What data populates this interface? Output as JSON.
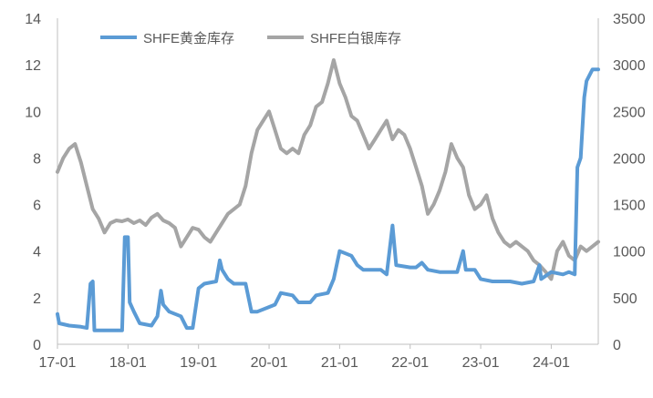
{
  "chart_data": {
    "type": "line",
    "title": "",
    "x_axis": {
      "tick_labels": [
        "17-01",
        "18-01",
        "19-01",
        "20-01",
        "21-01",
        "22-01",
        "23-01",
        "24-01"
      ],
      "range": [
        "2017-01",
        "2024-09"
      ]
    },
    "y_left": {
      "range": [
        0,
        14
      ],
      "ticks": [
        0,
        2,
        4,
        6,
        8,
        10,
        12,
        14
      ]
    },
    "y_right": {
      "range": [
        0,
        3500
      ],
      "ticks": [
        0,
        500,
        1000,
        1500,
        2000,
        2500,
        3000,
        3500
      ]
    },
    "grid": false,
    "legend": {
      "placement": "top-left"
    },
    "series": [
      {
        "name": "SHFE黄金库存",
        "axis": "left",
        "color": "#5B9BD5",
        "points": [
          [
            "2017-01",
            1.3
          ],
          [
            "2017-01-10",
            0.9
          ],
          [
            "2017-03",
            0.8
          ],
          [
            "2017-05",
            0.75
          ],
          [
            "2017-06",
            0.7
          ],
          [
            "2017-06-20",
            2.6
          ],
          [
            "2017-07",
            2.7
          ],
          [
            "2017-07-10",
            0.6
          ],
          [
            "2017-09",
            0.6
          ],
          [
            "2017-11",
            0.6
          ],
          [
            "2017-12",
            0.6
          ],
          [
            "2017-12-15",
            4.6
          ],
          [
            "2018-01",
            4.6
          ],
          [
            "2018-01-10",
            1.8
          ],
          [
            "2018-02",
            1.4
          ],
          [
            "2018-03",
            0.9
          ],
          [
            "2018-05",
            0.8
          ],
          [
            "2018-06",
            1.2
          ],
          [
            "2018-06-20",
            2.3
          ],
          [
            "2018-07",
            1.7
          ],
          [
            "2018-08",
            1.4
          ],
          [
            "2018-10",
            1.2
          ],
          [
            "2018-11",
            0.7
          ],
          [
            "2018-12",
            0.7
          ],
          [
            "2019-01",
            2.4
          ],
          [
            "2019-02",
            2.6
          ],
          [
            "2019-04",
            2.7
          ],
          [
            "2019-04-20",
            3.6
          ],
          [
            "2019-05",
            3.2
          ],
          [
            "2019-06",
            2.8
          ],
          [
            "2019-07",
            2.6
          ],
          [
            "2019-09",
            2.6
          ],
          [
            "2019-10",
            1.4
          ],
          [
            "2019-11",
            1.4
          ],
          [
            "2020-01",
            1.6
          ],
          [
            "2020-02",
            1.7
          ],
          [
            "2020-03",
            2.2
          ],
          [
            "2020-05",
            2.1
          ],
          [
            "2020-06",
            1.8
          ],
          [
            "2020-08",
            1.8
          ],
          [
            "2020-09",
            2.1
          ],
          [
            "2020-11",
            2.2
          ],
          [
            "2020-12",
            2.8
          ],
          [
            "2021-01",
            4.0
          ],
          [
            "2021-03",
            3.8
          ],
          [
            "2021-04",
            3.4
          ],
          [
            "2021-05",
            3.2
          ],
          [
            "2021-08",
            3.2
          ],
          [
            "2021-09",
            3.0
          ],
          [
            "2021-10",
            5.1
          ],
          [
            "2021-10-20",
            3.4
          ],
          [
            "2022-01",
            3.3
          ],
          [
            "2022-02",
            3.3
          ],
          [
            "2022-03",
            3.5
          ],
          [
            "2022-04",
            3.2
          ],
          [
            "2022-06",
            3.1
          ],
          [
            "2022-09",
            3.1
          ],
          [
            "2022-10",
            4.0
          ],
          [
            "2022-10-15",
            3.2
          ],
          [
            "2022-12",
            3.2
          ],
          [
            "2023-01",
            2.8
          ],
          [
            "2023-03",
            2.7
          ],
          [
            "2023-06",
            2.7
          ],
          [
            "2023-08",
            2.6
          ],
          [
            "2023-10",
            2.7
          ],
          [
            "2023-11",
            3.4
          ],
          [
            "2023-11-10",
            2.8
          ],
          [
            "2024-01",
            3.1
          ],
          [
            "2024-03",
            3.0
          ],
          [
            "2024-04",
            3.1
          ],
          [
            "2024-05",
            3.0
          ],
          [
            "2024-05-15",
            7.6
          ],
          [
            "2024-06",
            8.0
          ],
          [
            "2024-06-20",
            10.6
          ],
          [
            "2024-07",
            11.3
          ],
          [
            "2024-08",
            11.8
          ],
          [
            "2024-09",
            11.8
          ]
        ]
      },
      {
        "name": "SHFE白银库存",
        "axis": "right",
        "color": "#A5A5A5",
        "points": [
          [
            "2017-01",
            1850
          ],
          [
            "2017-02",
            2000
          ],
          [
            "2017-03",
            2100
          ],
          [
            "2017-04",
            2150
          ],
          [
            "2017-05",
            1950
          ],
          [
            "2017-06",
            1700
          ],
          [
            "2017-07",
            1450
          ],
          [
            "2017-08",
            1350
          ],
          [
            "2017-09",
            1200
          ],
          [
            "2017-10",
            1300
          ],
          [
            "2017-11",
            1330
          ],
          [
            "2017-12",
            1320
          ],
          [
            "2018-01",
            1340
          ],
          [
            "2018-02",
            1300
          ],
          [
            "2018-03",
            1330
          ],
          [
            "2018-04",
            1280
          ],
          [
            "2018-05",
            1360
          ],
          [
            "2018-06",
            1400
          ],
          [
            "2018-07",
            1330
          ],
          [
            "2018-08",
            1300
          ],
          [
            "2018-09",
            1250
          ],
          [
            "2018-10",
            1050
          ],
          [
            "2018-11",
            1150
          ],
          [
            "2018-12",
            1250
          ],
          [
            "2019-01",
            1230
          ],
          [
            "2019-02",
            1150
          ],
          [
            "2019-03",
            1100
          ],
          [
            "2019-04",
            1200
          ],
          [
            "2019-05",
            1300
          ],
          [
            "2019-06",
            1400
          ],
          [
            "2019-07",
            1450
          ],
          [
            "2019-08",
            1500
          ],
          [
            "2019-09",
            1700
          ],
          [
            "2019-10",
            2050
          ],
          [
            "2019-11",
            2300
          ],
          [
            "2019-12",
            2400
          ],
          [
            "2020-01",
            2500
          ],
          [
            "2020-02",
            2300
          ],
          [
            "2020-03",
            2100
          ],
          [
            "2020-04",
            2050
          ],
          [
            "2020-05",
            2100
          ],
          [
            "2020-06",
            2050
          ],
          [
            "2020-07",
            2250
          ],
          [
            "2020-08",
            2350
          ],
          [
            "2020-09",
            2550
          ],
          [
            "2020-10",
            2600
          ],
          [
            "2020-11",
            2800
          ],
          [
            "2020-12",
            3050
          ],
          [
            "2021-01",
            2800
          ],
          [
            "2021-02",
            2650
          ],
          [
            "2021-03",
            2450
          ],
          [
            "2021-04",
            2400
          ],
          [
            "2021-05",
            2250
          ],
          [
            "2021-06",
            2100
          ],
          [
            "2021-07",
            2200
          ],
          [
            "2021-08",
            2300
          ],
          [
            "2021-09",
            2400
          ],
          [
            "2021-10",
            2200
          ],
          [
            "2021-11",
            2300
          ],
          [
            "2021-12",
            2250
          ],
          [
            "2022-01",
            2100
          ],
          [
            "2022-02",
            1900
          ],
          [
            "2022-03",
            1700
          ],
          [
            "2022-04",
            1400
          ],
          [
            "2022-05",
            1500
          ],
          [
            "2022-06",
            1650
          ],
          [
            "2022-07",
            1850
          ],
          [
            "2022-08",
            2150
          ],
          [
            "2022-09",
            2000
          ],
          [
            "2022-10",
            1900
          ],
          [
            "2022-11",
            1600
          ],
          [
            "2022-12",
            1450
          ],
          [
            "2023-01",
            1500
          ],
          [
            "2023-02",
            1600
          ],
          [
            "2023-03",
            1350
          ],
          [
            "2023-04",
            1200
          ],
          [
            "2023-05",
            1100
          ],
          [
            "2023-06",
            1050
          ],
          [
            "2023-07",
            1100
          ],
          [
            "2023-08",
            1050
          ],
          [
            "2023-09",
            1000
          ],
          [
            "2023-10",
            900
          ],
          [
            "2023-11",
            850
          ],
          [
            "2023-12",
            780
          ],
          [
            "2024-01",
            700
          ],
          [
            "2024-02",
            1000
          ],
          [
            "2024-03",
            1100
          ],
          [
            "2024-04",
            950
          ],
          [
            "2024-05",
            900
          ],
          [
            "2024-06",
            1050
          ],
          [
            "2024-07",
            1000
          ],
          [
            "2024-08",
            1050
          ],
          [
            "2024-09",
            1100
          ]
        ]
      }
    ]
  }
}
